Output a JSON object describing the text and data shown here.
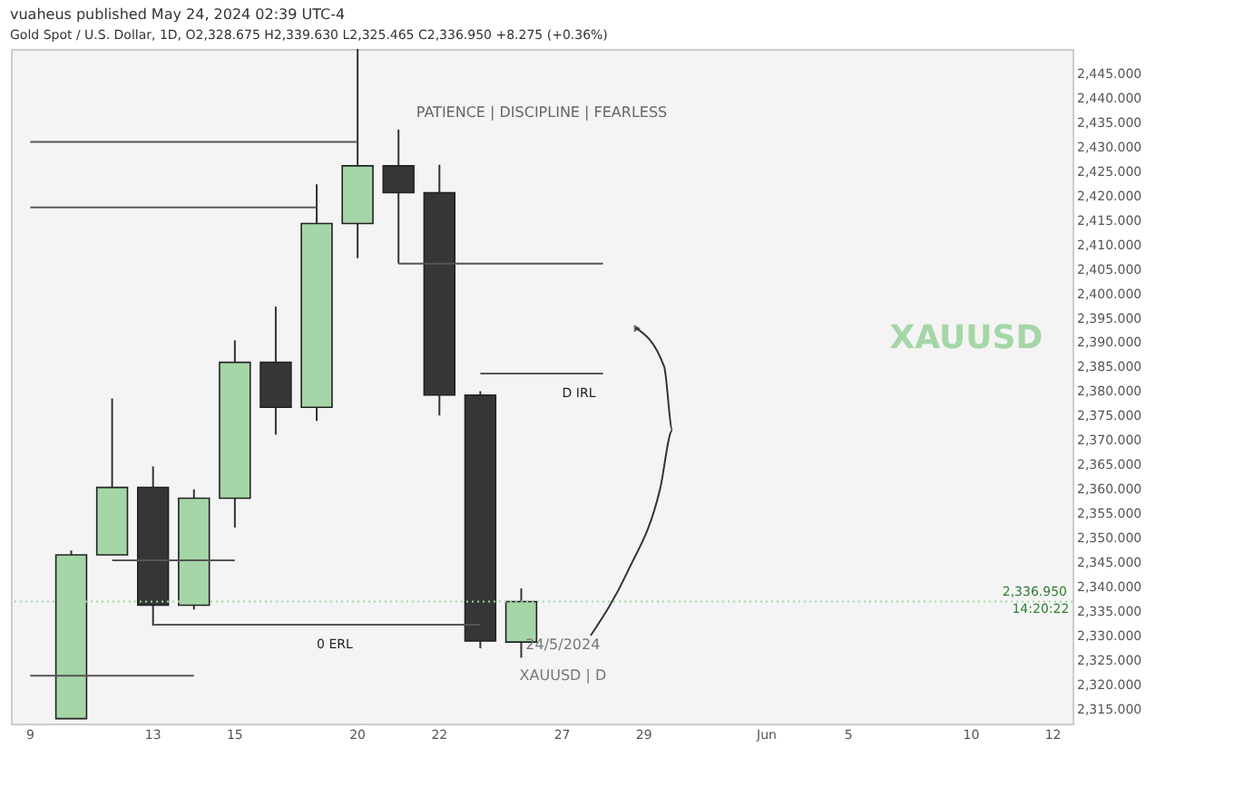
{
  "chart_data": {
    "type": "candlestick",
    "title": "vuaheus published May 24, 2024 02:39 UTC-4",
    "subtitle": "Gold Spot / U.S. Dollar, 1D, O2,328.675 H2,339.630 L2,325.465 C2,336.950 +8.275 (+0.36%)",
    "categories": [
      "9",
      null,
      null,
      "13",
      null,
      "15",
      null,
      null,
      "20",
      null,
      "22",
      null,
      null,
      "27",
      null,
      "29",
      null,
      null,
      "Jun",
      null,
      "5",
      null,
      null,
      "10",
      null,
      "12"
    ],
    "ohlc": [
      null,
      [
        2313,
        2347.4,
        2313,
        2346.5
      ],
      [
        2346.5,
        2378.5,
        2346.5,
        2360.3
      ],
      [
        2360.3,
        2364.6,
        2332,
        2336.2
      ],
      [
        2336.2,
        2359.9,
        2335.3,
        2358.1
      ],
      [
        2358.1,
        2390.4,
        2352.1,
        2385.9
      ],
      [
        2385.9,
        2397.3,
        2371.1,
        2376.7
      ],
      [
        2376.7,
        2422.3,
        2373.9,
        2414.3
      ],
      [
        2414.3,
        2450,
        2407.2,
        2426.1
      ],
      [
        2426.1,
        2433.5,
        2406.1,
        2420.6
      ],
      [
        2420.6,
        2426.3,
        2375,
        2379.2
      ],
      [
        2379.2,
        2380,
        2327.4,
        2328.9
      ],
      [
        2328.675,
        2339.63,
        2325.465,
        2336.95
      ],
      null,
      null,
      null,
      null,
      null,
      null,
      null,
      null,
      null,
      null,
      null,
      null,
      null
    ],
    "colors": [
      null,
      "#a5d6a7",
      "#a5d6a7",
      "#363636",
      "#a5d6a7",
      "#a5d6a7",
      "#363636",
      "#a5d6a7",
      "#a5d6a7",
      "#363636",
      "#363636",
      "#363636",
      "#a5d6a7",
      null,
      null,
      null,
      null,
      null,
      null,
      null,
      null,
      null,
      null,
      null,
      null,
      null
    ],
    "series": [
      {
        "type": "line",
        "color": "#555555",
        "values": [
          2431,
          2431,
          2431,
          2431,
          2431,
          2431,
          2431,
          2431,
          2431,
          null,
          null,
          null,
          null,
          null,
          null,
          null,
          null,
          null,
          null,
          null,
          null,
          null,
          null,
          null,
          null,
          null
        ]
      },
      {
        "type": "line",
        "color": "#555555",
        "values": [
          2417.6,
          2417.6,
          2417.6,
          2417.6,
          2417.6,
          2417.6,
          2417.6,
          2417.6,
          null,
          null,
          null,
          null,
          null,
          null,
          null,
          null,
          null,
          null,
          null,
          null,
          null,
          null,
          null,
          null,
          null,
          null
        ]
      },
      {
        "type": "line",
        "color": "#555555",
        "values": [
          null,
          null,
          null,
          null,
          null,
          null,
          null,
          null,
          null,
          2406.1,
          2406.1,
          2406.1,
          2406.1,
          2406.1,
          2406.1,
          null,
          null,
          null,
          null,
          null,
          null,
          null,
          null,
          null,
          null,
          null
        ]
      },
      {
        "type": "line",
        "name": "D IRL",
        "color": "#555555",
        "values": [
          null,
          null,
          null,
          null,
          null,
          null,
          null,
          null,
          null,
          null,
          null,
          2383.6,
          2383.6,
          2383.6,
          2383.6,
          null,
          null,
          null,
          null,
          null,
          null,
          null,
          null,
          null,
          null,
          null
        ]
      },
      {
        "type": "line",
        "color": "#555555",
        "values": [
          null,
          null,
          2345.4,
          2345.4,
          2345.4,
          2345.4,
          null,
          null,
          null,
          null,
          null,
          null,
          null,
          null,
          null,
          null,
          null,
          null,
          null,
          null,
          null,
          null,
          null,
          null,
          null,
          null
        ]
      },
      {
        "type": "line",
        "name": "0 ERL",
        "color": "#555555",
        "values": [
          null,
          null,
          null,
          2332.2,
          2332.2,
          2332.2,
          2332.2,
          2332.2,
          2332.2,
          2332.2,
          2332.2,
          2332.2,
          null,
          null,
          null,
          null,
          null,
          null,
          null,
          null,
          null,
          null,
          null,
          null,
          null,
          null
        ]
      },
      {
        "type": "line",
        "color": "#555555",
        "values": [
          2321.8,
          2321.8,
          2321.8,
          2321.8,
          2321.8,
          null,
          null,
          null,
          null,
          null,
          null,
          null,
          null,
          null,
          null,
          null,
          null,
          null,
          null,
          null,
          null,
          null,
          null,
          null,
          null,
          null
        ]
      }
    ],
    "ref_lines": [
      {
        "axis": "y",
        "value": 2336.95,
        "label": "2,336.950",
        "color": "#a5d6a7",
        "line_style": "dotted"
      }
    ],
    "annotations": [
      "PATIENCE  |  DISCIPLINE  |  FEARLESS",
      "XAUUSD",
      "24/5/2024",
      "XAUUSD  |  D",
      "14:20:22"
    ],
    "ylim": [
      2312,
      2450
    ],
    "yticks": [
      {
        "value": 2315,
        "label": "2,315.000"
      },
      {
        "value": 2320,
        "label": "2,320.000"
      },
      {
        "value": 2325,
        "label": "2,325.000"
      },
      {
        "value": 2330,
        "label": "2,330.000"
      },
      {
        "value": 2335,
        "label": "2,335.000"
      },
      {
        "value": 2340,
        "label": "2,340.000"
      },
      {
        "value": 2345,
        "label": "2,345.000"
      },
      {
        "value": 2350,
        "label": "2,350.000"
      },
      {
        "value": 2355,
        "label": "2,355.000"
      },
      {
        "value": 2360,
        "label": "2,360.000"
      },
      {
        "value": 2365,
        "label": "2,365.000"
      },
      {
        "value": 2370,
        "label": "2,370.000"
      },
      {
        "value": 2375,
        "label": "2,375.000"
      },
      {
        "value": 2380,
        "label": "2,380.000"
      },
      {
        "value": 2385,
        "label": "2,385.000"
      },
      {
        "value": 2390,
        "label": "2,390.000"
      },
      {
        "value": 2395,
        "label": "2,395.000"
      },
      {
        "value": 2400,
        "label": "2,400.000"
      },
      {
        "value": 2405,
        "label": "2,405.000"
      },
      {
        "value": 2410,
        "label": "2,410.000"
      },
      {
        "value": 2415,
        "label": "2,415.000"
      },
      {
        "value": 2420,
        "label": "2,420.000"
      },
      {
        "value": 2425,
        "label": "2,425.000"
      },
      {
        "value": 2430,
        "label": "2,430.000"
      },
      {
        "value": 2435,
        "label": "2,435.000"
      },
      {
        "value": 2440,
        "label": "2,440.000"
      },
      {
        "value": 2445,
        "label": "2,445.000"
      }
    ],
    "grid": false
  }
}
